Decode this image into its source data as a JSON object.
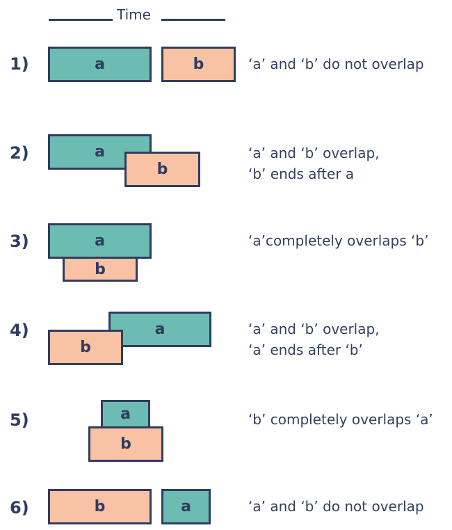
{
  "header": {
    "time_label": "Time"
  },
  "cases": [
    {
      "number": "1)",
      "a_label": "a",
      "b_label": "b",
      "description": [
        "‘a’ and ‘b’ do not overlap"
      ]
    },
    {
      "number": "2)",
      "a_label": "a",
      "b_label": "b",
      "description": [
        "‘a’ and ‘b’ overlap,",
        "‘b’ ends after a"
      ]
    },
    {
      "number": "3)",
      "a_label": "a",
      "b_label": "b",
      "description": [
        "‘a’completely overlaps ‘b’"
      ]
    },
    {
      "number": "4)",
      "a_label": "a",
      "b_label": "b",
      "description": [
        "‘a’ and ‘b’ overlap,",
        "‘a’ ends after ‘b’"
      ]
    },
    {
      "number": "5)",
      "a_label": "a",
      "b_label": "b",
      "description": [
        "‘b’ completely overlaps ‘a’"
      ]
    },
    {
      "number": "6)",
      "a_label": "a",
      "b_label": "b",
      "description": [
        "‘a’ and ‘b’ do not overlap"
      ]
    }
  ],
  "colors": {
    "a_fill": "#6cbcb3",
    "b_fill": "#f9c2a4",
    "outline": "#2f3d5e",
    "text": "#33415f"
  }
}
